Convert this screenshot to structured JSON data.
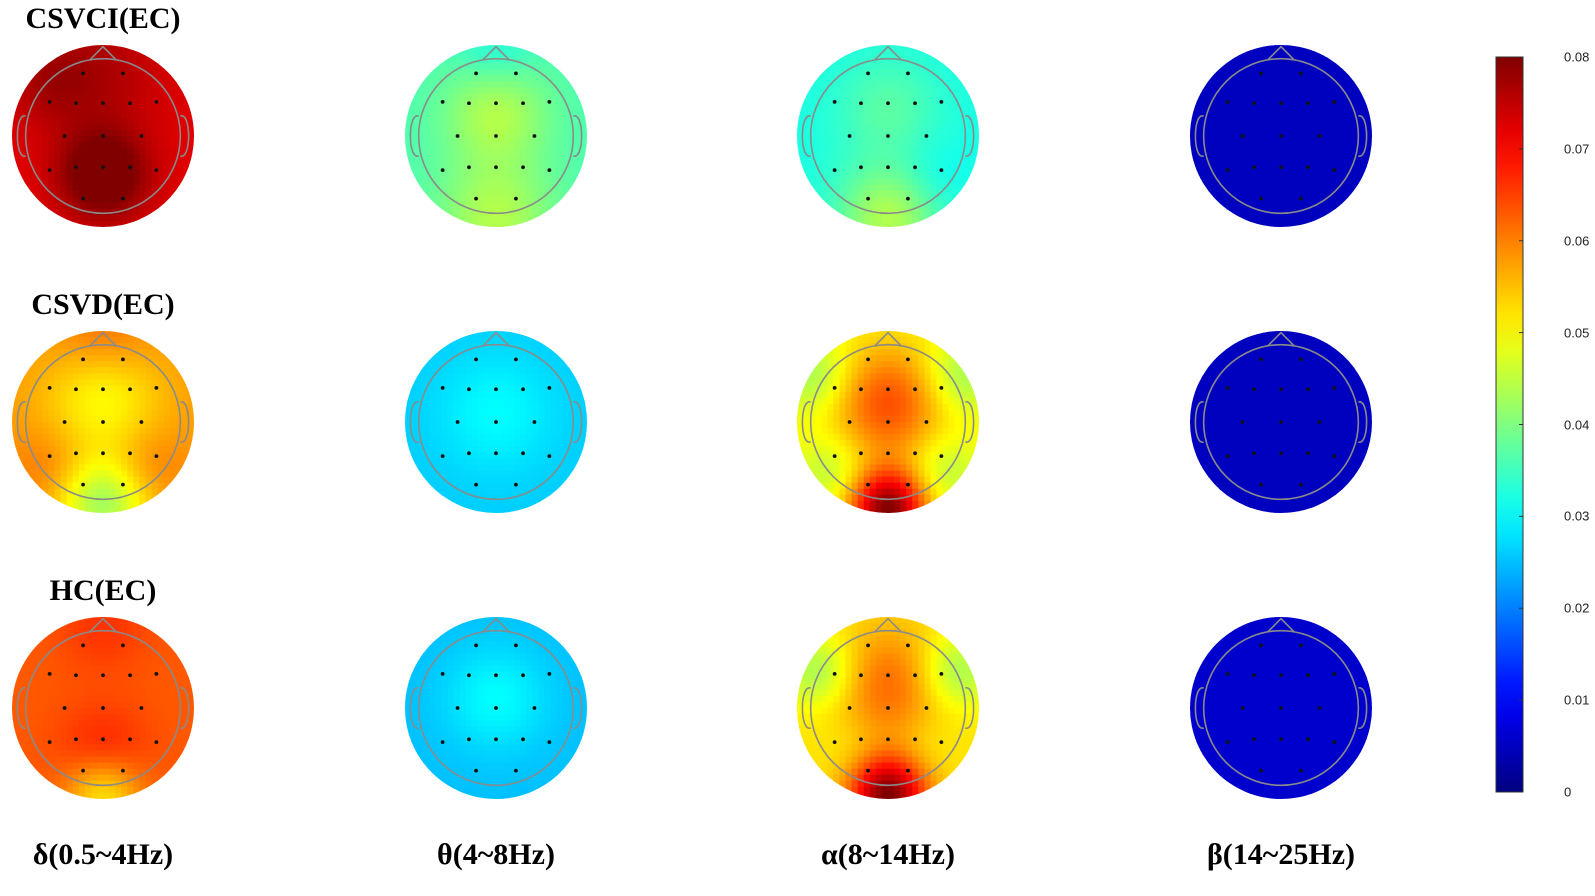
{
  "chart_data": {
    "type": "heatmap",
    "description_type": "topographic EEG maps",
    "rows": [
      {
        "label": "CSVCI(EC)"
      },
      {
        "label": "CSVD(EC)"
      },
      {
        "label": "HC(EC)"
      }
    ],
    "columns": [
      {
        "label": "δ(0.5~4Hz)"
      },
      {
        "label": "θ(4~8Hz)"
      },
      {
        "label": "α(8~14Hz)"
      },
      {
        "label": "β(14~25Hz)"
      }
    ],
    "maps": [
      [
        {
          "base": 0.072,
          "blobs": [
            [
              0,
              0.42,
              0.35,
              0.012
            ],
            [
              0,
              -0.7,
              0.5,
              0.004
            ],
            [
              -0.6,
              -0.6,
              0.35,
              0.004
            ]
          ]
        },
        {
          "base": 0.036,
          "blobs": [
            [
              0,
              -0.25,
              0.4,
              0.008
            ],
            [
              0,
              0.9,
              0.45,
              0.008
            ],
            [
              0,
              -0.95,
              0.3,
              -0.004
            ]
          ]
        },
        {
          "base": 0.032,
          "blobs": [
            [
              0,
              -0.3,
              0.4,
              0.005
            ],
            [
              0,
              0.9,
              0.4,
              0.012
            ],
            [
              0.5,
              0.45,
              0.3,
              -0.002
            ]
          ]
        },
        {
          "base": 0.005,
          "blobs": []
        }
      ],
      [
        {
          "base": 0.058,
          "blobs": [
            [
              0,
              -0.25,
              0.45,
              -0.008
            ],
            [
              0,
              0.9,
              0.35,
              -0.015
            ],
            [
              -0.6,
              0.5,
              0.3,
              0.003
            ],
            [
              0.5,
              0.5,
              0.3,
              0.003
            ],
            [
              0,
              -0.95,
              0.35,
              0.004
            ]
          ]
        },
        {
          "base": 0.026,
          "blobs": [
            [
              0,
              -0.1,
              0.45,
              0.004
            ]
          ]
        },
        {
          "base": 0.05,
          "blobs": [
            [
              0,
              -0.2,
              0.45,
              0.014
            ],
            [
              0,
              0.95,
              0.3,
              0.03
            ],
            [
              -0.6,
              0.55,
              0.3,
              -0.006
            ],
            [
              0.6,
              0.55,
              0.3,
              -0.006
            ],
            [
              -0.8,
              -0.5,
              0.3,
              -0.008
            ],
            [
              0.8,
              -0.5,
              0.3,
              -0.008
            ]
          ]
        },
        {
          "base": 0.005,
          "blobs": []
        }
      ],
      [
        {
          "base": 0.063,
          "blobs": [
            [
              0,
              0.5,
              0.35,
              0.005
            ],
            [
              0,
              0.95,
              0.3,
              -0.012
            ],
            [
              0,
              -0.9,
              0.35,
              0.003
            ]
          ]
        },
        {
          "base": 0.025,
          "blobs": [
            [
              0,
              -0.1,
              0.4,
              0.005
            ]
          ]
        },
        {
          "base": 0.052,
          "blobs": [
            [
              0,
              -0.25,
              0.45,
              0.01
            ],
            [
              0,
              0.95,
              0.3,
              0.028
            ],
            [
              -0.75,
              -0.4,
              0.3,
              -0.01
            ],
            [
              0.75,
              -0.4,
              0.3,
              -0.01
            ],
            [
              -0.4,
              0.45,
              0.25,
              -0.002
            ],
            [
              0.4,
              0.45,
              0.25,
              -0.002
            ]
          ]
        },
        {
          "base": 0.006,
          "blobs": []
        }
      ]
    ],
    "electrodes": [
      [
        -0.28,
        -0.88
      ],
      [
        0.28,
        -0.88
      ],
      [
        -0.75,
        -0.48
      ],
      [
        -0.38,
        -0.46
      ],
      [
        0,
        -0.46
      ],
      [
        0.38,
        -0.46
      ],
      [
        0.75,
        -0.48
      ],
      [
        -0.54,
        0
      ],
      [
        0,
        0
      ],
      [
        0.54,
        0
      ],
      [
        -0.75,
        0.48
      ],
      [
        -0.38,
        0.44
      ],
      [
        0,
        0.44
      ],
      [
        0.38,
        0.44
      ],
      [
        0.75,
        0.48
      ],
      [
        -0.28,
        0.88
      ],
      [
        0.28,
        0.88
      ]
    ],
    "colorbar": {
      "colormap": "jet",
      "min": 0,
      "max": 0.08,
      "tick_labels": [
        "0.08",
        "0.07",
        "0.06",
        "0.05",
        "0.04",
        "0.03",
        "0.02",
        "0.01",
        "0"
      ]
    }
  },
  "colors": {
    "head_outline": "#8a8a8a",
    "electrode": "#111111",
    "text": "#000000"
  }
}
